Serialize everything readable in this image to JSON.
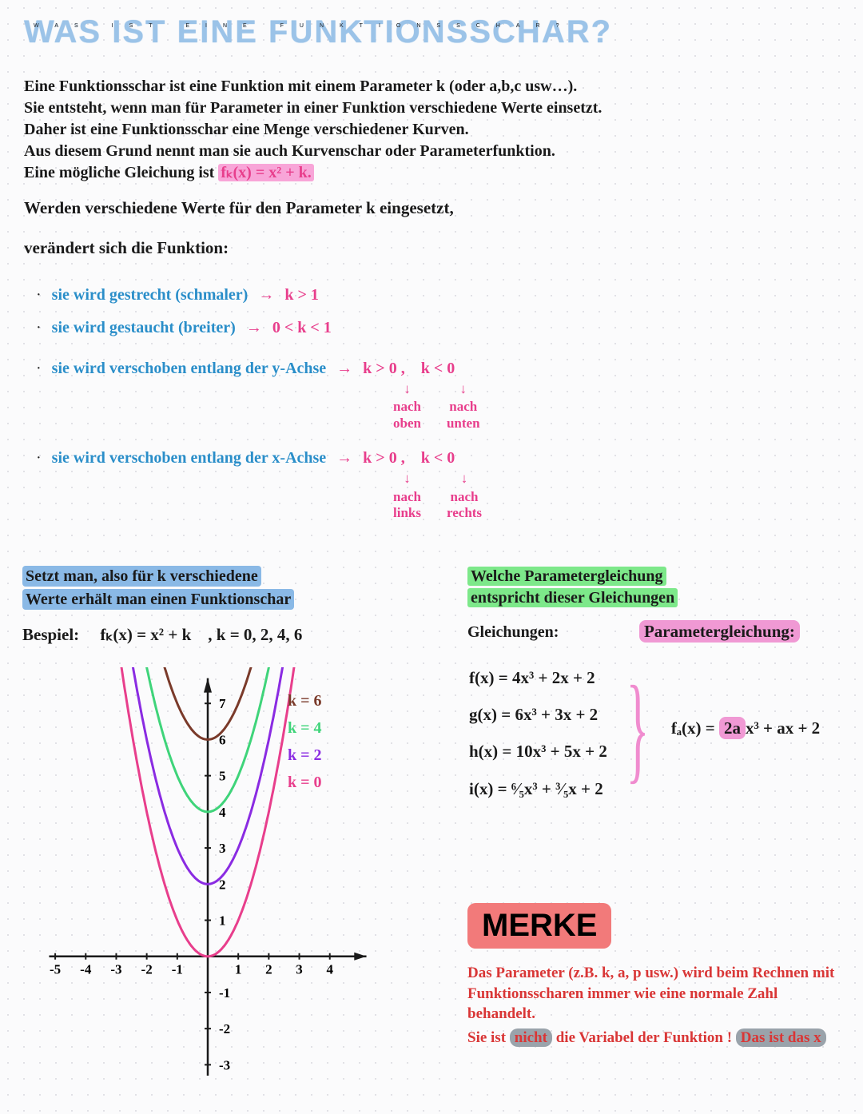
{
  "title": "WAS IST EINE FUNKTIONSSCHAR?",
  "subtitle": "WAS IST EINE FUNKTIONSSCHAR?",
  "intro_l1": "Eine Funktionsschar ist eine Funktion mit einem Parameter k (oder a,b,c usw…).",
  "intro_l2": "Sie entsteht, wenn man für Parameter in einer Funktion verschiedene Werte einsetzt.",
  "intro_l3": "Daher ist eine Funktionsschar eine Menge verschiedener Kurven.",
  "intro_l4": "Aus diesem Grund nennt man sie auch Kurvenschar oder Parameterfunktion.",
  "intro_l5a": "Eine mögliche Gleichung ist  ",
  "intro_l5b": "fₖ(x) = x² + k.",
  "line2": "Werden verschiedene Werte für den Parameter k eingesetzt,",
  "line3": "verändert sich die Funktion:",
  "b1_text": "sie wird gestrecht (schmaler)",
  "b1_cond": "k > 1",
  "b2_text": "sie wird gestaucht (breiter)",
  "b2_cond": "0 < k < 1",
  "b3_text": "sie wird verschoben entlang der y-Achse",
  "b3_c1": "k > 0",
  "b3_c2": "k < 0",
  "b3_s1": "nach\noben",
  "b3_s2": "nach\nunten",
  "b4_text": "sie wird verschoben entlang der x-Achse",
  "b4_c1": "k > 0",
  "b4_c2": "k < 0",
  "b4_s1": "nach\nlinks",
  "b4_s2": "nach\nrechts",
  "left_h1": "Setzt man, also für k verschiedene",
  "left_h2": "Werte erhält man einen Funktionschar",
  "example_label": "Bespiel:",
  "example_eq": "fₖ(x) = x² + k",
  "example_k": ", k = 0, 2, 4, 6",
  "legend": [
    {
      "label": "k = 6",
      "color": "#7a3a2a"
    },
    {
      "label": "k = 4",
      "color": "#3fd47a"
    },
    {
      "label": "k = 2",
      "color": "#8a2be2"
    },
    {
      "label": "k = 0",
      "color": "#e83e8c"
    }
  ],
  "chart": {
    "xlim": [
      -5.5,
      5.5
    ],
    "ylim": [
      -3.5,
      8
    ],
    "xticks": [
      -5,
      -4,
      -3,
      -2,
      -1,
      1,
      2,
      3,
      4
    ],
    "yticks": [
      -3,
      -2,
      -1,
      1,
      2,
      3,
      4,
      5,
      6,
      7
    ],
    "curves": [
      {
        "k": 0,
        "color": "#e83e8c"
      },
      {
        "k": 2,
        "color": "#8a2be2"
      },
      {
        "k": 4,
        "color": "#3fd47a"
      },
      {
        "k": 6,
        "color": "#7a3a2a"
      }
    ],
    "axis_color": "#1a1a1a",
    "line_width": 3,
    "tick_fontsize": 17
  },
  "right_h1": "Welche Parametergleichung",
  "right_h2": "entspricht dieser Gleichungen",
  "eq_head1": "Gleichungen:",
  "eq_head2": "Parametergleichung:",
  "eq1": "f(x) = 4x³ + 2x + 2",
  "eq2": "g(x) = 6x³ + 3x + 2",
  "eq3": "h(x) = 10x³ + 5x + 2",
  "eq4": "i(x) = ⁶⁄₅x³ + ³⁄₅x + 2",
  "param_eq_a": "fₐ(x) = ",
  "param_eq_b": "2a",
  "param_eq_c": "x³ + ax + 2",
  "merke": "MERKE",
  "merke_t1": "Das Parameter (z.B. k, a, p usw.) wird beim Rechnen mit Funktionsscharen immer wie eine normale Zahl behandelt.",
  "merke_t2a": "Sie ist ",
  "merke_t2b": "nicht",
  "merke_t2c": " die Variabel der Funktion ! ",
  "merke_t2d": "Das ist das x"
}
